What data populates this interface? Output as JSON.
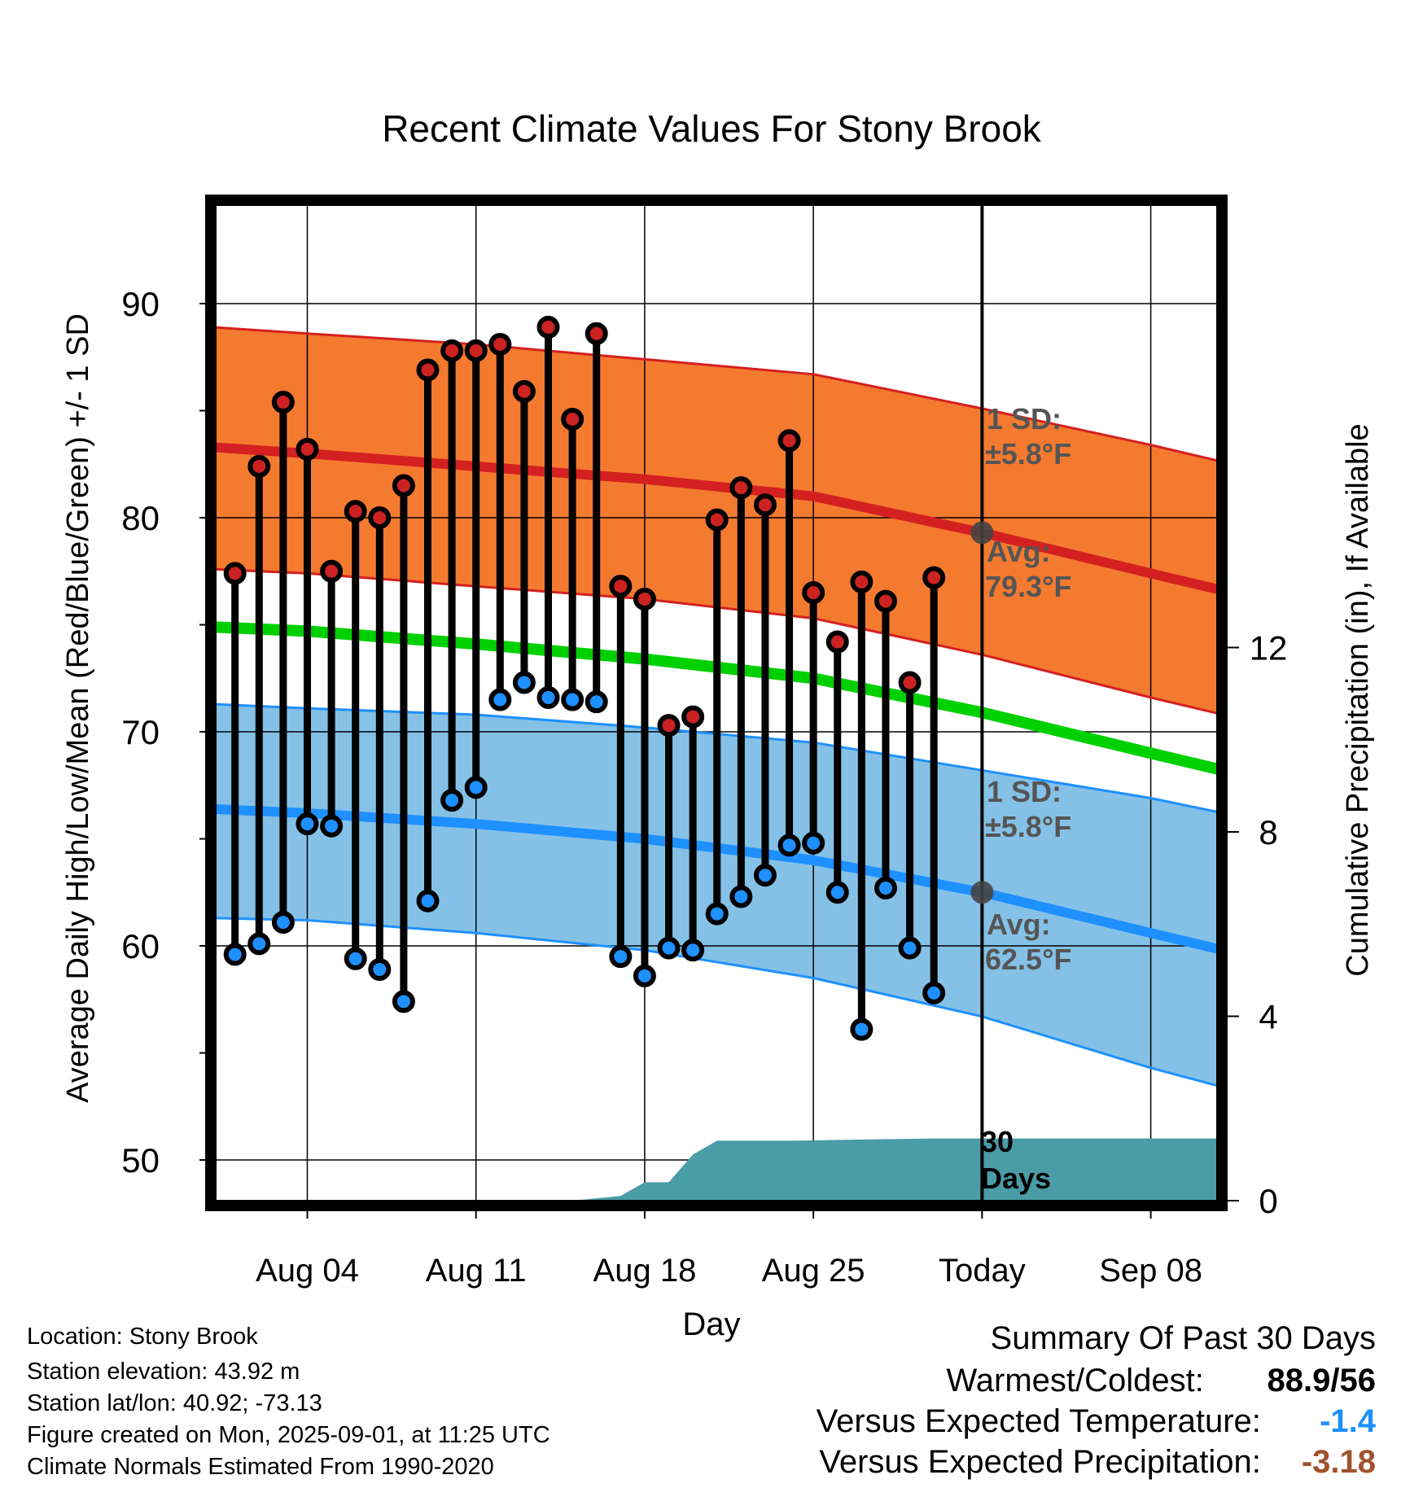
{
  "chart_data": {
    "type": "line",
    "title": "Recent Climate Values For Stony Brook",
    "xlabel": "Day",
    "ylabel": "Average Daily High/Low/Mean (Red/Blue/Green) +/- 1 SD",
    "y2label": "Cumulative Precipitation (in), If Available",
    "ylim": [
      48.1,
      94.6
    ],
    "y2lim": [
      0,
      21.6
    ],
    "xlim": [
      "Jul 31",
      "Sep 10"
    ],
    "yticks": [
      "50",
      "60",
      "70",
      "80",
      "90"
    ],
    "y2ticks": [
      "0",
      "4",
      "8",
      "12"
    ],
    "xticks": [
      {
        "day": 4,
        "label": "Aug 04"
      },
      {
        "day": 11,
        "label": "Aug 11"
      },
      {
        "day": 18,
        "label": "Aug 18"
      },
      {
        "day": 25,
        "label": "Aug 25"
      },
      {
        "day": 32,
        "label": "Today"
      },
      {
        "day": 39,
        "label": "Sep 08"
      }
    ],
    "grid": true,
    "today_day": 32,
    "days": [
      1,
      2,
      3,
      4,
      5,
      6,
      7,
      8,
      9,
      10,
      11,
      12,
      13,
      14,
      15,
      16,
      17,
      18,
      19,
      20,
      21,
      22,
      23,
      24,
      25,
      26,
      27,
      28,
      29,
      30
    ],
    "series": [
      {
        "name": "High",
        "color": "#cc2222",
        "values": [
          77.4,
          82.4,
          85.4,
          83.2,
          77.5,
          80.3,
          80.0,
          81.5,
          86.9,
          87.8,
          87.8,
          88.1,
          85.9,
          88.9,
          84.6,
          88.6,
          76.8,
          76.2,
          70.3,
          70.7,
          79.9,
          81.4,
          80.6,
          83.6,
          76.5,
          74.2,
          77.0,
          76.1,
          72.3,
          77.2
        ]
      },
      {
        "name": "Low",
        "color": "#1e90ff",
        "values": [
          59.6,
          60.1,
          61.1,
          65.7,
          65.6,
          59.4,
          58.9,
          57.4,
          62.1,
          66.8,
          67.4,
          71.5,
          72.3,
          71.6,
          71.5,
          71.4,
          59.5,
          58.6,
          59.9,
          59.8,
          61.5,
          62.3,
          63.3,
          64.7,
          64.8,
          62.5,
          56.1,
          62.7,
          59.9,
          57.8
        ]
      }
    ],
    "normals": {
      "days": [
        0,
        4,
        11,
        18,
        25,
        32,
        39,
        42
      ],
      "high_avg": [
        83.3,
        83.0,
        82.4,
        81.8,
        81.0,
        79.3,
        77.4,
        76.6
      ],
      "high_upper": [
        88.9,
        88.6,
        88.1,
        87.4,
        86.7,
        85.1,
        83.4,
        82.6
      ],
      "high_lower": [
        77.6,
        77.4,
        76.8,
        76.2,
        75.3,
        73.6,
        71.6,
        70.8
      ],
      "mean": [
        74.9,
        74.7,
        74.1,
        73.4,
        72.5,
        70.9,
        69.0,
        68.2
      ],
      "low_avg": [
        66.4,
        66.2,
        65.7,
        65.0,
        64.0,
        62.5,
        60.6,
        59.8
      ],
      "low_upper": [
        71.3,
        71.1,
        70.8,
        70.2,
        69.5,
        68.2,
        66.9,
        66.2
      ],
      "low_lower": [
        61.3,
        61.2,
        60.6,
        59.8,
        58.5,
        56.7,
        54.3,
        53.4
      ]
    },
    "precipitation": {
      "days": [
        0,
        15,
        17,
        18,
        19,
        20,
        21,
        24,
        30,
        42
      ],
      "cumulative": [
        0,
        0,
        0.1,
        0.4,
        0.4,
        1.0,
        1.3,
        1.3,
        1.35,
        1.35
      ]
    },
    "annotations": {
      "high_sd_label": "1 SD:",
      "high_sd_value": "±5.8°F",
      "high_avg_label": "Avg:",
      "high_avg_value": "79.3°F",
      "low_sd_label": "1 SD:",
      "low_sd_value": "±5.8°F",
      "low_avg_label": "Avg:",
      "low_avg_value": "62.5°F",
      "window_label_1": "30",
      "window_label_2": "Days"
    },
    "colors": {
      "high_band": "#f47a30",
      "high_line": "#d42020",
      "high_edge": "#d42020",
      "mean_line": "#00d000",
      "low_band": "#85c1e6",
      "low_line": "#1e90ff",
      "low_edge": "#1e90ff",
      "precip_fill": "#4a9ca6",
      "today_marker": "#444444",
      "annotation_text": "#555555"
    }
  },
  "info": {
    "location": "Location: Stony Brook",
    "elevation": "Station elevation: 43.92 m",
    "latlon": "Station lat/lon: 40.92; -73.13",
    "created": "Figure created on Mon, 2025-09-01, at 11:25 UTC",
    "normals": "Climate Normals Estimated From 1990-2020"
  },
  "summary": {
    "title": "Summary Of Past 30 Days",
    "warm_cold_label": "Warmest/Coldest:",
    "warm_value": "88.9",
    "cold_value": "56",
    "temp_label": "Versus Expected Temperature:",
    "temp_value": "-1.4",
    "temp_color": "#1e90ff",
    "precip_label": "Versus Expected Precipitation:",
    "precip_value": "-3.18",
    "precip_color": "#a0522d"
  }
}
